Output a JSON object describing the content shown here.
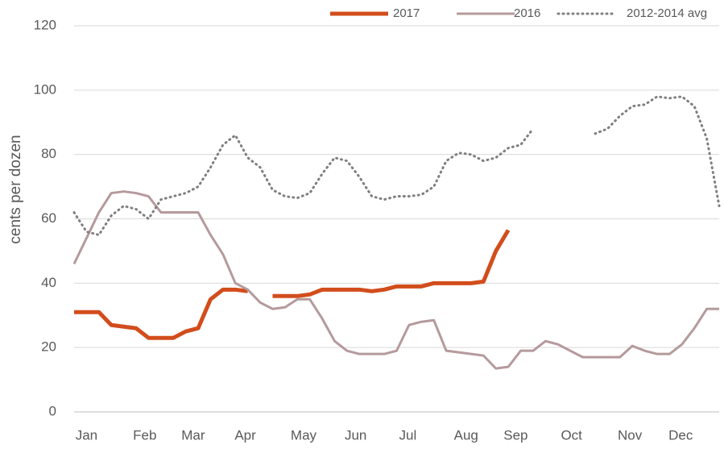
{
  "chart_data": {
    "type": "line",
    "y_label": "cents per dozen",
    "x": [
      0,
      1,
      2,
      3,
      4,
      5,
      6,
      7,
      8,
      9,
      10,
      11,
      12,
      13,
      14,
      15,
      16,
      17,
      18,
      19,
      20,
      21,
      22,
      23,
      24,
      25,
      26,
      27,
      28,
      29,
      30,
      31,
      32,
      33,
      34,
      35,
      36,
      37,
      38,
      39,
      40,
      41,
      42,
      43,
      44,
      45,
      46,
      47,
      48,
      49,
      50,
      51,
      52
    ],
    "xlim": [
      0,
      52
    ],
    "xticks": [
      {
        "value": 1.0,
        "label": "Jan"
      },
      {
        "value": 5.7,
        "label": "Feb"
      },
      {
        "value": 9.6,
        "label": "Mar"
      },
      {
        "value": 13.8,
        "label": "Apr"
      },
      {
        "value": 18.5,
        "label": "May"
      },
      {
        "value": 22.7,
        "label": "Jun"
      },
      {
        "value": 26.9,
        "label": "Jul"
      },
      {
        "value": 31.6,
        "label": "Aug"
      },
      {
        "value": 35.6,
        "label": "Sep"
      },
      {
        "value": 40.1,
        "label": "Oct"
      },
      {
        "value": 44.8,
        "label": "Nov"
      },
      {
        "value": 48.9,
        "label": "Dec"
      }
    ],
    "ylim": [
      0,
      120
    ],
    "yticks": [
      0,
      20,
      40,
      60,
      80,
      100,
      120
    ],
    "grid": true,
    "legend": "top",
    "series": [
      {
        "name": "2017",
        "color": "#d24d1c",
        "style": "solid",
        "width": 5,
        "values": [
          31,
          31,
          31,
          27,
          26.5,
          26,
          23,
          23,
          23,
          25,
          26,
          35,
          38,
          38,
          37.5,
          null,
          36,
          36,
          36,
          36.5,
          38,
          38,
          38,
          38,
          37.5,
          38,
          39,
          39,
          39,
          40,
          40,
          40,
          40,
          40.5,
          50,
          56.5,
          null,
          null,
          null,
          null,
          null,
          null,
          null,
          null,
          null,
          null,
          null,
          null,
          null,
          null,
          null,
          null,
          null
        ]
      },
      {
        "name": "2016",
        "color": "#b59a9c",
        "style": "solid",
        "width": 3,
        "values": [
          46,
          54,
          62,
          68,
          68.5,
          68,
          67,
          62,
          62,
          62,
          62,
          55,
          49,
          40,
          38,
          34,
          32,
          32.5,
          35,
          35,
          29,
          22,
          19,
          18,
          18,
          18,
          19,
          27,
          28,
          28.5,
          19,
          18.5,
          18,
          17.5,
          13.5,
          14,
          19,
          19,
          22,
          21,
          19,
          17,
          17,
          17,
          17,
          20.5,
          19,
          18,
          18,
          21,
          26,
          32,
          32
        ]
      },
      {
        "name": "2012-2014 avg",
        "color": "#7f7f7f",
        "style": "dotted",
        "width": 3,
        "values": [
          62,
          56,
          55,
          61,
          64,
          63,
          60,
          66,
          67,
          68,
          70,
          76,
          83,
          86,
          79,
          76,
          69,
          67,
          66.5,
          68,
          74,
          79,
          78,
          73,
          67,
          66,
          67,
          67,
          67.5,
          70,
          78,
          80.5,
          80,
          78,
          79,
          82,
          83,
          88,
          null,
          null,
          null,
          null,
          86.5,
          88,
          92,
          95,
          95.5,
          98,
          97.5,
          98,
          95,
          85,
          64
        ]
      }
    ]
  }
}
